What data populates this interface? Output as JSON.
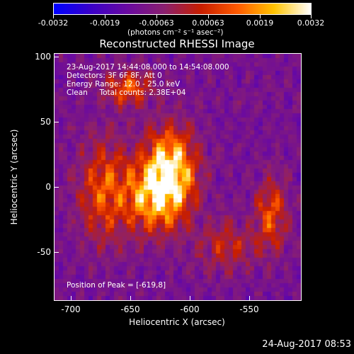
{
  "colorbar": {
    "ticks": [
      "-0.0032",
      "-0.0019",
      "-0.00063",
      "0.00063",
      "0.0019",
      "0.0032"
    ],
    "units": "(photons cm⁻² s⁻¹ asec⁻²)",
    "range": [
      -0.0032,
      0.0032
    ],
    "colors": [
      "#0000ff",
      "#3a00c8",
      "#6a0aa0",
      "#8a2070",
      "#c81e00",
      "#ff5a00",
      "#ffc400",
      "#ffffff"
    ]
  },
  "title": "Reconstructed RHESSI Image",
  "info": {
    "line1": "23-Aug-2017 14:44:08.000 to 14:54:08.000",
    "line2": "Detectors: 3F 6F 8F, Att 0",
    "line3": "Energy Range: 12.0 - 25.0 keV",
    "line4": "Clean     Total counts: 2.38E+04"
  },
  "peak": "Position of Peak = [-619,8]",
  "axes": {
    "xlabel": "Heliocentric X (arcsec)",
    "ylabel": "Heliocentric Y (arcsec)",
    "xticks": [
      "-700",
      "-650",
      "-600",
      "-550"
    ],
    "yticks": [
      "100",
      "50",
      "0",
      "-50"
    ],
    "xrange": [
      -710,
      -520
    ],
    "yrange": [
      -90,
      103
    ]
  },
  "timestamp": "24-Aug-2017 08:53"
}
